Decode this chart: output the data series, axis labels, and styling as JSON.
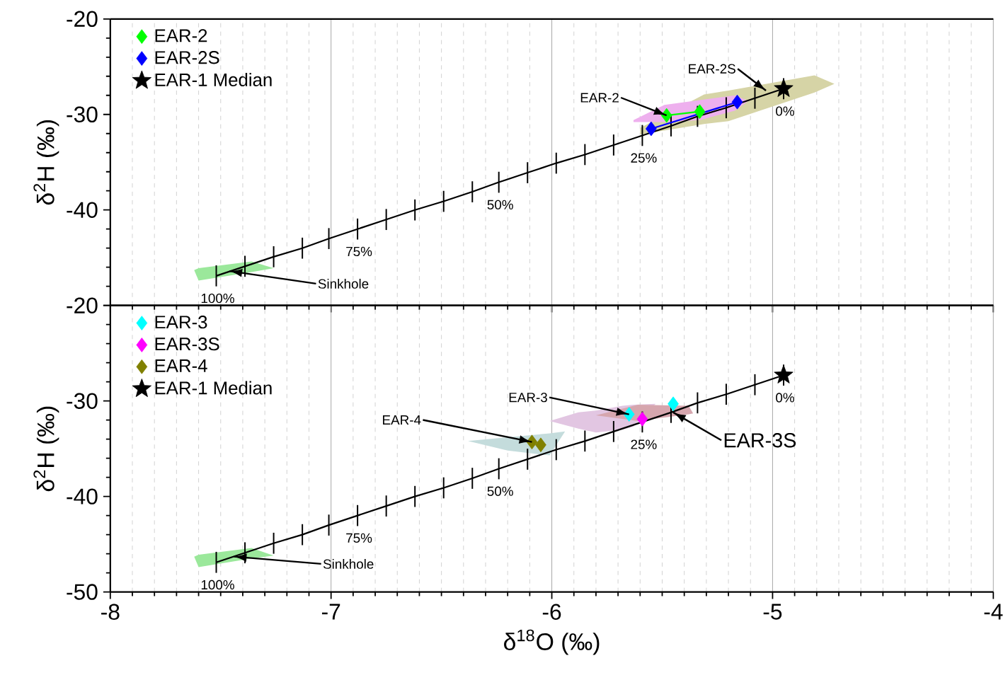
{
  "chart_data": [
    {
      "type": "scatter",
      "ylabel": "δ$^{2}$H (‰)",
      "xlim": [
        -8,
        -4
      ],
      "xticks": [
        -8,
        -7,
        -6,
        -5,
        -4
      ],
      "ylim": [
        -50,
        -20
      ],
      "yticks": [
        {
          "value": -50,
          "label": null
        },
        -40,
        -30,
        -20
      ],
      "grid": "x",
      "legend": "top left",
      "tick_labels": "y",
      "series": [
        {
          "type": "area",
          "color": "#9be89b",
          "x": [
            -7.62,
            -7.6,
            -7.36,
            -7.26,
            -7.36,
            -7.6
          ],
          "values": [
            -46.3,
            -46.1,
            -45.4,
            -46.1,
            -46.5,
            -47.4
          ]
        },
        {
          "type": "area",
          "color": "#d6d4a6",
          "x": [
            -5.6,
            -5.31,
            -5.2,
            -4.81,
            -4.72,
            -4.81,
            -5.2,
            -5.31,
            -5.6
          ],
          "values": [
            -31.4,
            -27.9,
            -27.5,
            -25.9,
            -26.8,
            -27.7,
            -30.7,
            -31.0,
            -32.1
          ]
        },
        {
          "type": "area",
          "color": "#eeb0ee",
          "x": [
            -5.63,
            -5.49,
            -5.17,
            -5.11,
            -5.17,
            -5.33,
            -5.49,
            -5.63
          ],
          "values": [
            -30.6,
            -29.0,
            -28.0,
            -28.6,
            -29.6,
            -30.6,
            -30.8,
            -30.8
          ]
        },
        {
          "type": "line",
          "color": "#000000",
          "marker": "none",
          "line_style": "solid",
          "x": [
            -7.52,
            -7.39,
            -7.26,
            -7.13,
            -7.01,
            -6.88,
            -6.75,
            -6.62,
            -6.49,
            -6.36,
            -6.24,
            -6.11,
            -5.98,
            -5.85,
            -5.72,
            -5.59,
            -5.46,
            -5.34,
            -5.21,
            -5.08,
            -4.95
          ],
          "values": [
            -46.9,
            -45.9,
            -44.9,
            -44.0,
            -43.0,
            -42.0,
            -41.0,
            -40.0,
            -39.1,
            -38.1,
            -37.1,
            -36.1,
            -35.1,
            -34.2,
            -33.2,
            -32.2,
            -31.2,
            -30.2,
            -29.3,
            -28.3,
            -27.3
          ],
          "errors": [
            1.1,
            1.1,
            1.1,
            1.1,
            1.1,
            1.1,
            1.1,
            1.1,
            1.1,
            1.1,
            1.1,
            1.1,
            1.1,
            1.1,
            1.1,
            1.1,
            1.1,
            1.1,
            1.1,
            1.1,
            1.1
          ]
        },
        {
          "type": "line",
          "name": "EAR-2",
          "color": "#00ff00",
          "marker": "diamond",
          "line_style": "solid",
          "x": [
            -5.48,
            -5.33
          ],
          "values": [
            -30.1,
            -29.7
          ]
        },
        {
          "type": "line",
          "name": "EAR-2S",
          "color": "#0000ff",
          "marker": "diamond",
          "line_style": "solid",
          "x": [
            -5.55,
            -5.16
          ],
          "values": [
            -31.5,
            -28.7
          ]
        },
        {
          "name": "EAR-1 Median",
          "color": "#000000",
          "marker": "star",
          "x": [
            -4.95
          ],
          "values": [
            -27.3
          ]
        }
      ],
      "annotations": [
        {
          "text": "Sinkhole",
          "x": -7.46,
          "y": -46.4
        },
        {
          "text": "EAR-2",
          "x": -5.48,
          "y": -30.1
        },
        {
          "text": "EAR-2S",
          "x": -5.03,
          "y": -27.5
        },
        {
          "text": "100%",
          "x": -7.52,
          "y": -46.9
        },
        {
          "text": "75%",
          "x": -6.88,
          "y": -42.0
        },
        {
          "text": "50%",
          "x": -6.24,
          "y": -37.1
        },
        {
          "text": "25%",
          "x": -5.59,
          "y": -32.2
        },
        {
          "text": "0%",
          "x": -4.95,
          "y": -27.3
        }
      ]
    },
    {
      "type": "scatter",
      "ylabel": "δ$^{2}$H (‰)",
      "xlabel": "δ$^{18}$O (‰)",
      "xlim": [
        -8,
        -4
      ],
      "xticks": [
        -8,
        -7,
        -6,
        -5,
        -4
      ],
      "ylim": [
        -50,
        -20
      ],
      "yticks": [
        -50,
        -40,
        -30,
        -20
      ],
      "grid": "x",
      "legend": "top left",
      "series": [
        {
          "type": "area",
          "color": "#9be89b",
          "x": [
            -7.62,
            -7.6,
            -7.36,
            -7.26,
            -7.36,
            -7.6
          ],
          "values": [
            -46.3,
            -46.1,
            -45.4,
            -46.2,
            -46.5,
            -47.4
          ]
        },
        {
          "type": "area",
          "color": "#c4dcdc",
          "x": [
            -6.38,
            -6.2,
            -6.01,
            -5.94,
            -6.01,
            -6.2
          ],
          "values": [
            -34.2,
            -33.8,
            -33.4,
            -33.2,
            -35.7,
            -35.2
          ]
        },
        {
          "type": "area",
          "color": "#e2c6e2",
          "x": [
            -6.01,
            -5.88,
            -5.8,
            -5.68,
            -5.63,
            -5.53,
            -5.63,
            -5.68,
            -5.8,
            -5.88
          ],
          "values": [
            -32.1,
            -31.2,
            -31.0,
            -30.5,
            -30.4,
            -30.3,
            -32.7,
            -33.0,
            -33.3,
            -32.9
          ]
        },
        {
          "type": "area",
          "color": "#d6a6ae",
          "x": [
            -5.8,
            -5.61,
            -5.38,
            -5.36,
            -5.38,
            -5.61
          ],
          "values": [
            -31.5,
            -30.4,
            -30.5,
            -31.3,
            -31.4,
            -32.1
          ]
        },
        {
          "type": "line",
          "color": "#000000",
          "marker": "none",
          "line_style": "solid",
          "x": [
            -7.52,
            -7.39,
            -7.26,
            -7.13,
            -7.01,
            -6.88,
            -6.75,
            -6.62,
            -6.49,
            -6.36,
            -6.24,
            -6.11,
            -5.98,
            -5.85,
            -5.72,
            -5.59,
            -5.46,
            -5.34,
            -5.21,
            -5.08,
            -4.95
          ],
          "values": [
            -46.9,
            -45.9,
            -44.9,
            -44.0,
            -43.0,
            -42.0,
            -41.0,
            -40.0,
            -39.1,
            -38.1,
            -37.1,
            -36.1,
            -35.1,
            -34.2,
            -33.2,
            -32.2,
            -31.2,
            -30.2,
            -29.3,
            -28.3,
            -27.3
          ],
          "errors": [
            1.1,
            1.1,
            1.1,
            1.1,
            1.1,
            1.1,
            1.1,
            1.1,
            1.1,
            1.1,
            1.1,
            1.1,
            1.1,
            1.1,
            1.1,
            1.1,
            1.1,
            1.1,
            1.1,
            1.1,
            1.1
          ]
        },
        {
          "name": "EAR-3",
          "color": "#00ffff",
          "marker": "diamond",
          "x": [
            -5.65,
            -5.45
          ],
          "values": [
            -31.4,
            -30.3
          ]
        },
        {
          "name": "EAR-3S",
          "color": "#ff00ff",
          "marker": "diamond",
          "x": [
            -5.59
          ],
          "values": [
            -31.9
          ]
        },
        {
          "name": "EAR-4",
          "color": "#808000",
          "marker": "diamond",
          "x": [
            -6.09,
            -6.05
          ],
          "values": [
            -34.3,
            -34.6
          ]
        },
        {
          "name": "EAR-1 Median",
          "color": "#000000",
          "marker": "star",
          "x": [
            -4.95
          ],
          "values": [
            -27.3
          ]
        }
      ],
      "annotations": [
        {
          "text": "Sinkhole",
          "x": -7.44,
          "y": -46.3
        },
        {
          "text": "EAR-4",
          "x": -6.09,
          "y": -34.3
        },
        {
          "text": "EAR-3",
          "x": -5.65,
          "y": -31.4
        },
        {
          "text": "EAR-3S",
          "x": -5.45,
          "y": -31.2
        },
        {
          "text": "100%",
          "x": -7.52,
          "y": -46.9
        },
        {
          "text": "75%",
          "x": -6.88,
          "y": -42.0
        },
        {
          "text": "50%",
          "x": -6.24,
          "y": -37.1
        },
        {
          "text": "25%",
          "x": -5.59,
          "y": -32.2
        },
        {
          "text": "0%",
          "x": -4.95,
          "y": -27.3
        }
      ]
    }
  ]
}
